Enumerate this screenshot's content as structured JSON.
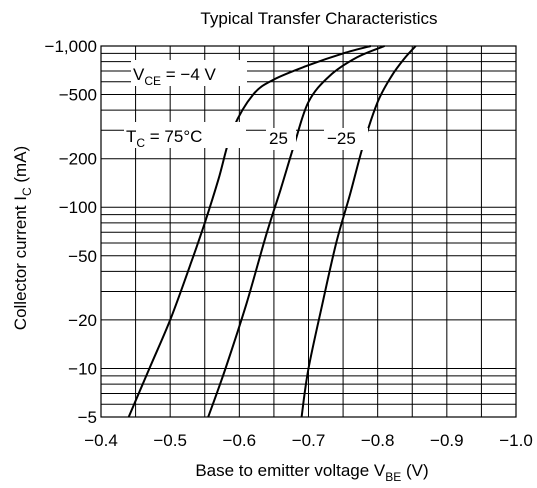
{
  "chart_data": {
    "type": "line",
    "title": "Typical Transfer Characteristics",
    "xlabel": "Base to emitter voltage",
    "xlabel_symbol": "V",
    "xlabel_symbol_sub": "BE",
    "xlabel_unit": "(V)",
    "ylabel": "Collector current",
    "ylabel_symbol": "I",
    "ylabel_symbol_sub": "C",
    "ylabel_unit": "(mA)",
    "x_ticks": [
      -0.4,
      -0.5,
      -0.6,
      -0.7,
      -0.8,
      -0.9,
      -1.0
    ],
    "x_tick_labels": [
      "−0.4",
      "−0.5",
      "−0.6",
      "−0.7",
      "−0.8",
      "−0.9",
      "−1.0"
    ],
    "y_scale": "log",
    "y_ticks": [
      -5,
      -10,
      -20,
      -50,
      -100,
      -200,
      -500,
      -1000
    ],
    "y_tick_labels": [
      "−5",
      "−10",
      "−20",
      "−50",
      "−100",
      "−200",
      "−500",
      "−1,000"
    ],
    "xlim": [
      -0.4,
      -1.0
    ],
    "ylim": [
      -5,
      -1000
    ],
    "grid": true,
    "annotations": {
      "vce_symbol": "V",
      "vce_sub": "CE",
      "vce_value": " = −4 V",
      "tc_symbol": "T",
      "tc_sub": "C",
      "tc_value": " = 75°C"
    },
    "series": [
      {
        "name": "75",
        "x": [
          -0.44,
          -0.47,
          -0.5,
          -0.53,
          -0.55,
          -0.57,
          -0.59,
          -0.62,
          -0.65,
          -0.7,
          -0.75,
          -0.79
        ],
        "y": [
          -5,
          -10,
          -20,
          -45,
          -80,
          -150,
          -300,
          -500,
          -620,
          -760,
          -900,
          -1000
        ]
      },
      {
        "name": "25",
        "x": [
          -0.555,
          -0.58,
          -0.61,
          -0.64,
          -0.66,
          -0.68,
          -0.7,
          -0.73,
          -0.77,
          -0.81
        ],
        "y": [
          -5,
          -10,
          -25,
          -70,
          -130,
          -250,
          -450,
          -650,
          -850,
          -1000
        ]
      },
      {
        "name": "−25",
        "x": [
          -0.69,
          -0.7,
          -0.72,
          -0.74,
          -0.76,
          -0.78,
          -0.8,
          -0.82,
          -0.84,
          -0.855
        ],
        "y": [
          -5,
          -10,
          -25,
          -60,
          -120,
          -250,
          -450,
          -650,
          -850,
          -1000
        ]
      }
    ],
    "series_labels": [
      "25",
      "−25"
    ]
  }
}
